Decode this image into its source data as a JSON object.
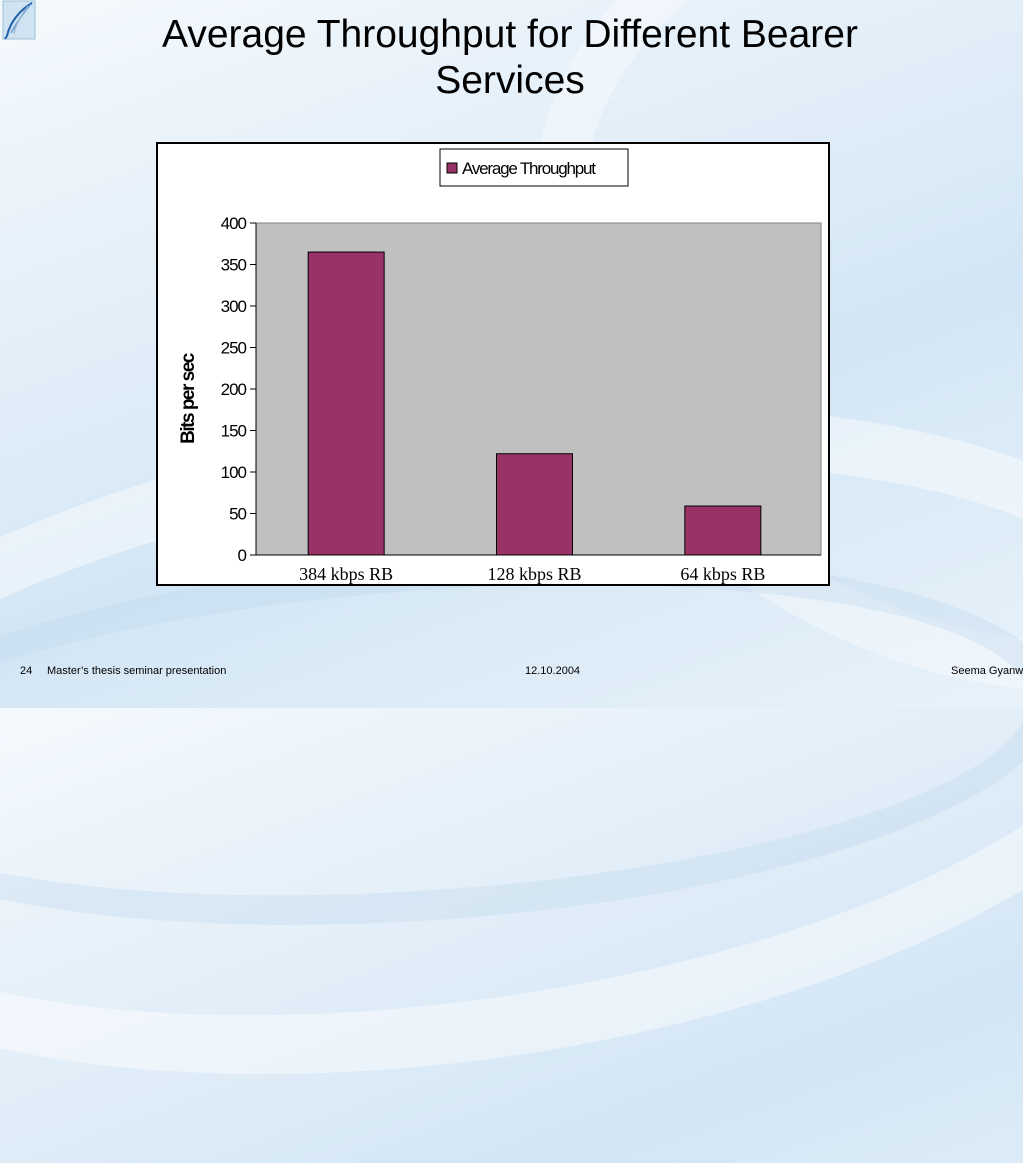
{
  "slide": {
    "title_line1": "Average Throughput for Different Bearer",
    "title_line2": "Services",
    "logo_icon": "feather-logo-icon"
  },
  "footer": {
    "page_number": "24",
    "presentation_title": "Master’s thesis seminar presentation",
    "date": "12.10.2004",
    "author": "Seema Gyanw"
  },
  "chart_data": {
    "type": "bar",
    "title": "",
    "xlabel": "",
    "ylabel": "Bits per sec",
    "categories": [
      "384 kbps RB",
      "128 kbps RB",
      "64 kbps RB"
    ],
    "series": [
      {
        "name": "Average Throughput",
        "values": [
          365,
          122,
          59
        ],
        "color": "#993366"
      }
    ],
    "ylim": [
      0,
      400
    ],
    "yticks": [
      "0",
      "50",
      "100",
      "150",
      "200",
      "250",
      "300",
      "350",
      "400"
    ],
    "plot_background": "#c0c0c0",
    "grid": false,
    "legend_position": "top-center"
  }
}
